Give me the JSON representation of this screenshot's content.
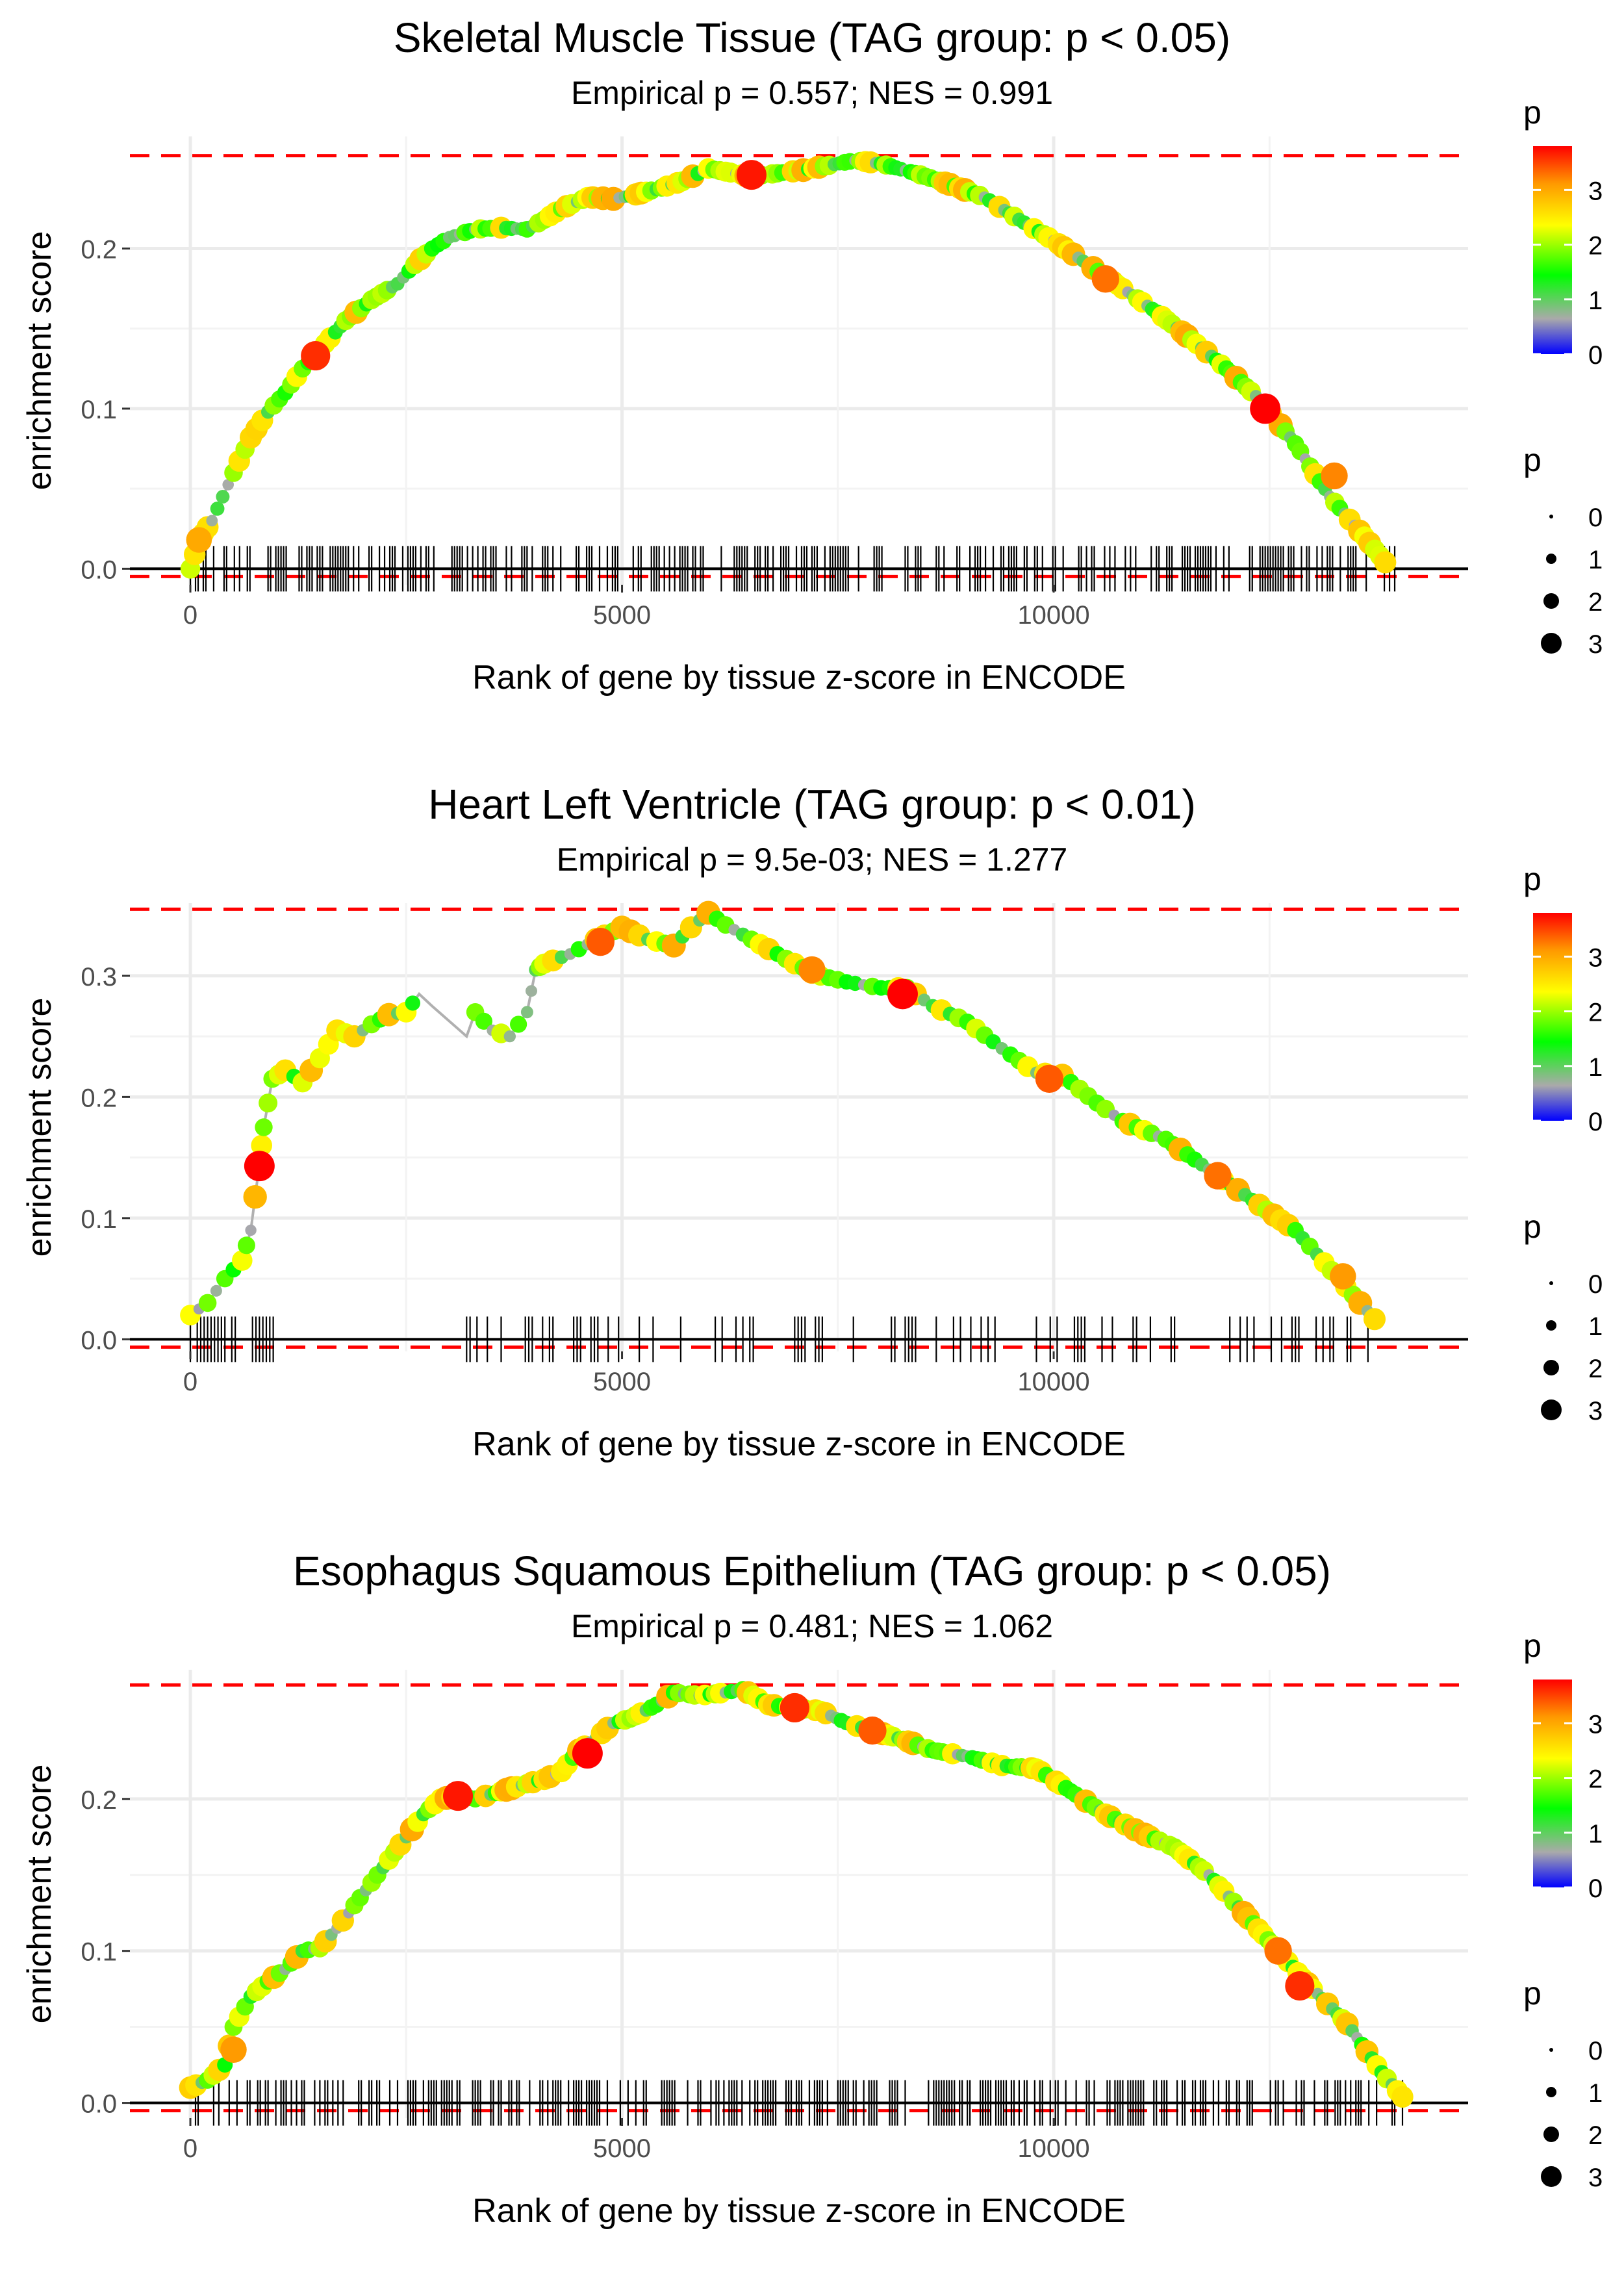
{
  "chart_data": [
    {
      "type": "line",
      "title": "Skeletal Muscle Tissue (TAG group: p < 0.05)",
      "subtitle": "Empirical p = 0.557; NES = 0.991",
      "xlabel": "Rank of gene by tissue z-score in ENCODE",
      "ylabel": "enrichment score",
      "xlim": [
        -700,
        14800
      ],
      "ylim": [
        -0.01,
        0.27
      ],
      "xticks": [
        0,
        5000,
        10000
      ],
      "xtick_labels": [
        "0",
        "5000",
        "10000"
      ],
      "yticks": [
        0.0,
        0.1,
        0.2
      ],
      "ytick_labels": [
        "0.0",
        "0.1",
        "0.2"
      ],
      "max_es_line": 0.258,
      "zero_line": 0.0,
      "n_genes": 14000,
      "rug_ranks": "dense across 0-13900",
      "curve": [
        [
          0,
          0.0
        ],
        [
          100,
          0.018
        ],
        [
          250,
          0.03
        ],
        [
          500,
          0.06
        ],
        [
          700,
          0.082
        ],
        [
          900,
          0.098
        ],
        [
          1100,
          0.11
        ],
        [
          1300,
          0.125
        ],
        [
          1500,
          0.137
        ],
        [
          1800,
          0.155
        ],
        [
          2100,
          0.168
        ],
        [
          2400,
          0.178
        ],
        [
          2600,
          0.19
        ],
        [
          2800,
          0.2
        ],
        [
          3000,
          0.207
        ],
        [
          3300,
          0.212
        ],
        [
          3600,
          0.213
        ],
        [
          3900,
          0.212
        ],
        [
          4100,
          0.218
        ],
        [
          4300,
          0.225
        ],
        [
          4600,
          0.232
        ],
        [
          4900,
          0.231
        ],
        [
          5100,
          0.233
        ],
        [
          5400,
          0.237
        ],
        [
          5700,
          0.242
        ],
        [
          6000,
          0.25
        ],
        [
          6200,
          0.248
        ],
        [
          6500,
          0.245
        ],
        [
          6800,
          0.247
        ],
        [
          7100,
          0.249
        ],
        [
          7400,
          0.252
        ],
        [
          7700,
          0.255
        ],
        [
          8000,
          0.253
        ],
        [
          8400,
          0.247
        ],
        [
          8800,
          0.24
        ],
        [
          9200,
          0.232
        ],
        [
          9600,
          0.218
        ],
        [
          10000,
          0.205
        ],
        [
          10400,
          0.19
        ],
        [
          10800,
          0.175
        ],
        [
          11200,
          0.16
        ],
        [
          11600,
          0.143
        ],
        [
          12000,
          0.125
        ],
        [
          12400,
          0.105
        ],
        [
          12800,
          0.078
        ],
        [
          13200,
          0.045
        ],
        [
          13600,
          0.02
        ],
        [
          13900,
          0.0
        ]
      ],
      "highlighted_points": [
        [
          100,
          0.018,
          3.0
        ],
        [
          1450,
          0.133,
          3.6
        ],
        [
          6500,
          0.246,
          3.7
        ],
        [
          10600,
          0.181,
          3.3
        ],
        [
          12450,
          0.1,
          3.8
        ],
        [
          13250,
          0.058,
          3.2
        ]
      ],
      "color_legend": {
        "title": "p",
        "ticks": [
          0,
          1,
          2,
          3
        ],
        "colors": [
          "#0000ff",
          "#aaaaaa",
          "#00ff00",
          "#ffff00",
          "#ff9900",
          "#ff0000"
        ]
      },
      "size_legend": {
        "title": "p",
        "labels": [
          "0",
          "1",
          "2",
          "3"
        ]
      }
    },
    {
      "type": "line",
      "title": "Heart Left Ventricle (TAG group: p < 0.01)",
      "subtitle": "Empirical p = 9.5e-03; NES = 1.277",
      "xlabel": "Rank of gene by tissue z-score in ENCODE",
      "ylabel": "enrichment score",
      "xlim": [
        -700,
        14800
      ],
      "ylim": [
        -0.01,
        0.36
      ],
      "xticks": [
        0,
        5000,
        10000
      ],
      "xtick_labels": [
        "0",
        "5000",
        "10000"
      ],
      "yticks": [
        0.0,
        0.1,
        0.2,
        0.3
      ],
      "ytick_labels": [
        "0.0",
        "0.1",
        "0.2",
        "0.3"
      ],
      "max_es_line": 0.355,
      "zero_line": 0.0,
      "n_genes": 14000,
      "rug_ranks": "sparse, clustered 0-1000 and 3000-13800",
      "curve": [
        [
          0,
          0.02
        ],
        [
          200,
          0.03
        ],
        [
          400,
          0.05
        ],
        [
          600,
          0.065
        ],
        [
          700,
          0.09
        ],
        [
          800,
          0.145
        ],
        [
          850,
          0.175
        ],
        [
          950,
          0.215
        ],
        [
          1100,
          0.222
        ],
        [
          1300,
          0.212
        ],
        [
          1500,
          0.232
        ],
        [
          1700,
          0.255
        ],
        [
          1900,
          0.25
        ],
        [
          2100,
          0.26
        ],
        [
          2300,
          0.268
        ],
        [
          2500,
          0.27
        ],
        [
          2650,
          0.285
        ],
        [
          2800,
          0.275
        ],
        [
          3200,
          0.25
        ],
        [
          3300,
          0.27
        ],
        [
          3500,
          0.255
        ],
        [
          3700,
          0.25
        ],
        [
          3900,
          0.27
        ],
        [
          4000,
          0.305
        ],
        [
          4100,
          0.31
        ],
        [
          4400,
          0.318
        ],
        [
          4700,
          0.33
        ],
        [
          5000,
          0.34
        ],
        [
          5300,
          0.33
        ],
        [
          5600,
          0.325
        ],
        [
          5800,
          0.34
        ],
        [
          6000,
          0.352
        ],
        [
          6200,
          0.342
        ],
        [
          6500,
          0.33
        ],
        [
          6800,
          0.318
        ],
        [
          7000,
          0.31
        ],
        [
          7300,
          0.3
        ],
        [
          7600,
          0.295
        ],
        [
          8000,
          0.29
        ],
        [
          8300,
          0.29
        ],
        [
          8600,
          0.275
        ],
        [
          9000,
          0.262
        ],
        [
          9400,
          0.24
        ],
        [
          9800,
          0.22
        ],
        [
          10100,
          0.218
        ],
        [
          10500,
          0.195
        ],
        [
          10800,
          0.18
        ],
        [
          11300,
          0.165
        ],
        [
          11800,
          0.14
        ],
        [
          12300,
          0.115
        ],
        [
          12800,
          0.09
        ],
        [
          13300,
          0.05
        ],
        [
          13800,
          0.01
        ]
      ],
      "highlighted_points": [
        [
          800,
          0.143,
          3.8
        ],
        [
          4750,
          0.328,
          3.4
        ],
        [
          7200,
          0.305,
          3.2
        ],
        [
          8250,
          0.285,
          3.8
        ],
        [
          9950,
          0.215,
          3.4
        ],
        [
          11900,
          0.135,
          3.3
        ],
        [
          13350,
          0.052,
          3.1
        ]
      ],
      "color_legend": {
        "title": "p",
        "ticks": [
          0,
          1,
          2,
          3
        ],
        "colors": [
          "#0000ff",
          "#aaaaaa",
          "#00ff00",
          "#ffff00",
          "#ff9900",
          "#ff0000"
        ]
      },
      "size_legend": {
        "title": "p",
        "labels": [
          "0",
          "1",
          "2",
          "3"
        ]
      }
    },
    {
      "type": "line",
      "title": "Esophagus Squamous Epithelium (TAG group: p < 0.05)",
      "subtitle": "Empirical p = 0.481; NES = 1.062",
      "xlabel": "Rank of gene by tissue z-score in ENCODE",
      "ylabel": "enrichment score",
      "xlim": [
        -700,
        14800
      ],
      "ylim": [
        -0.01,
        0.285
      ],
      "xticks": [
        0,
        5000,
        10000
      ],
      "xtick_labels": [
        "0",
        "5000",
        "10000"
      ],
      "yticks": [
        0.0,
        0.1,
        0.2
      ],
      "ytick_labels": [
        "0.0",
        "0.1",
        "0.2"
      ],
      "max_es_line": 0.275,
      "zero_line": 0.0,
      "n_genes": 14100,
      "rug_ranks": "dense across 0-14000",
      "curve": [
        [
          0,
          0.01
        ],
        [
          200,
          0.015
        ],
        [
          400,
          0.025
        ],
        [
          500,
          0.05
        ],
        [
          700,
          0.07
        ],
        [
          900,
          0.08
        ],
        [
          1100,
          0.088
        ],
        [
          1300,
          0.1
        ],
        [
          1500,
          0.102
        ],
        [
          1700,
          0.115
        ],
        [
          1900,
          0.13
        ],
        [
          2100,
          0.145
        ],
        [
          2300,
          0.16
        ],
        [
          2500,
          0.175
        ],
        [
          2700,
          0.19
        ],
        [
          2900,
          0.2
        ],
        [
          3100,
          0.202
        ],
        [
          3300,
          0.2
        ],
        [
          3600,
          0.205
        ],
        [
          3900,
          0.21
        ],
        [
          4100,
          0.213
        ],
        [
          4300,
          0.218
        ],
        [
          4500,
          0.232
        ],
        [
          4700,
          0.24
        ],
        [
          4900,
          0.25
        ],
        [
          5100,
          0.253
        ],
        [
          5400,
          0.262
        ],
        [
          5600,
          0.27
        ],
        [
          5900,
          0.268
        ],
        [
          6200,
          0.27
        ],
        [
          6400,
          0.272
        ],
        [
          6700,
          0.262
        ],
        [
          7000,
          0.26
        ],
        [
          7300,
          0.258
        ],
        [
          7600,
          0.25
        ],
        [
          7900,
          0.245
        ],
        [
          8200,
          0.24
        ],
        [
          8600,
          0.232
        ],
        [
          9000,
          0.228
        ],
        [
          9400,
          0.222
        ],
        [
          9800,
          0.22
        ],
        [
          10200,
          0.205
        ],
        [
          10600,
          0.19
        ],
        [
          11000,
          0.178
        ],
        [
          11400,
          0.168
        ],
        [
          11800,
          0.15
        ],
        [
          12200,
          0.125
        ],
        [
          12600,
          0.1
        ],
        [
          13000,
          0.075
        ],
        [
          13400,
          0.052
        ],
        [
          13800,
          0.02
        ],
        [
          14100,
          0.0
        ]
      ],
      "highlighted_points": [
        [
          500,
          0.035,
          3.1
        ],
        [
          3100,
          0.202,
          3.7
        ],
        [
          4600,
          0.23,
          3.8
        ],
        [
          7000,
          0.26,
          3.6
        ],
        [
          7900,
          0.245,
          3.4
        ],
        [
          12600,
          0.1,
          3.3
        ],
        [
          12850,
          0.077,
          3.6
        ]
      ],
      "color_legend": {
        "title": "p",
        "ticks": [
          0,
          1,
          2,
          3
        ],
        "colors": [
          "#0000ff",
          "#aaaaaa",
          "#00ff00",
          "#ffff00",
          "#ff9900",
          "#ff0000"
        ]
      },
      "size_legend": {
        "title": "p",
        "labels": [
          "0",
          "1",
          "2",
          "3"
        ]
      }
    }
  ]
}
